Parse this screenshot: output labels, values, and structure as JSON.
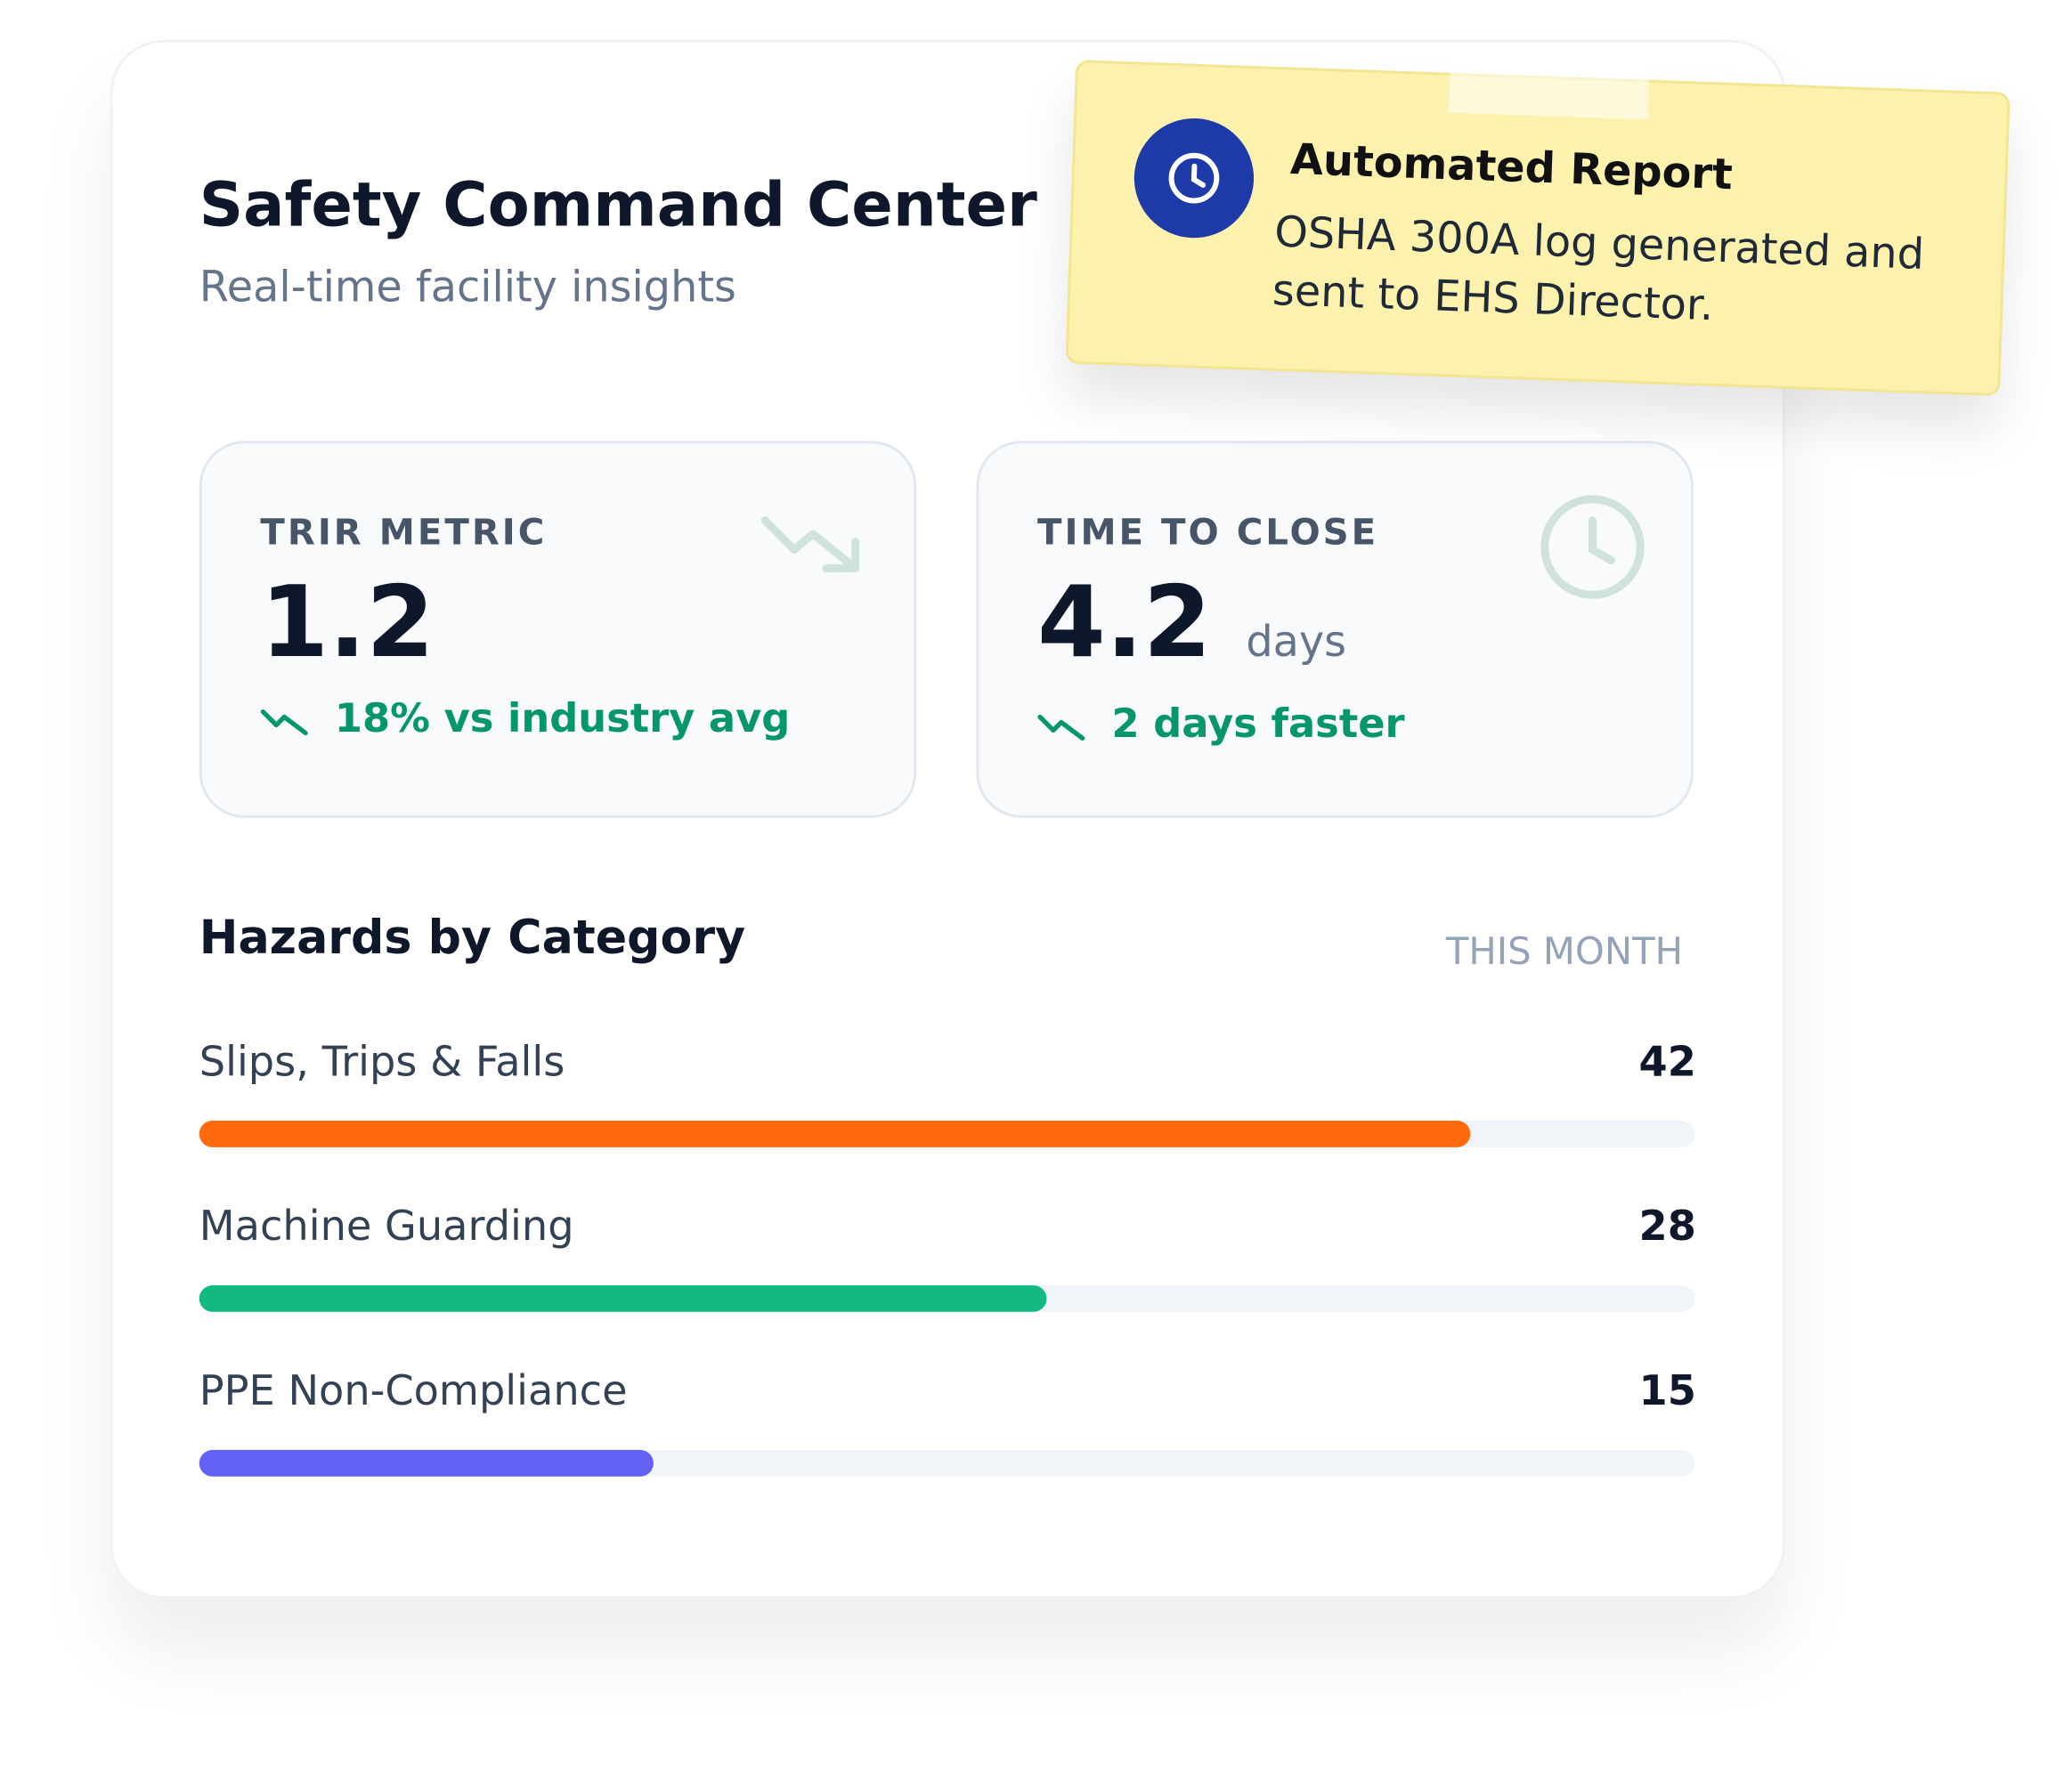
{
  "card": {
    "title": "Safety Command Center",
    "subtitle": "Real-time facility insights"
  },
  "notification": {
    "title": "Automated Report",
    "message": "OSHA 300A log generated and sent to EHS Director."
  },
  "metrics": [
    {
      "label": "TRIR METRIC",
      "value": 1.2,
      "change": "18% vs industry avg"
    },
    {
      "label": "TIME TO CLOSE",
      "value": 4.2,
      "unit": "days",
      "change": "2 days faster"
    }
  ],
  "hazards": {
    "title": "Hazards by Category",
    "period": "THIS MONTH",
    "items": [
      {
        "name": "Slips, Trips & Falls",
        "value": 42,
        "color": "#ff6a0d"
      },
      {
        "name": "Machine Guarding",
        "value": 28,
        "color": "#12b981"
      },
      {
        "name": "PPE Non-Compliance",
        "value": 15,
        "color": "#6461f7"
      }
    ]
  }
}
